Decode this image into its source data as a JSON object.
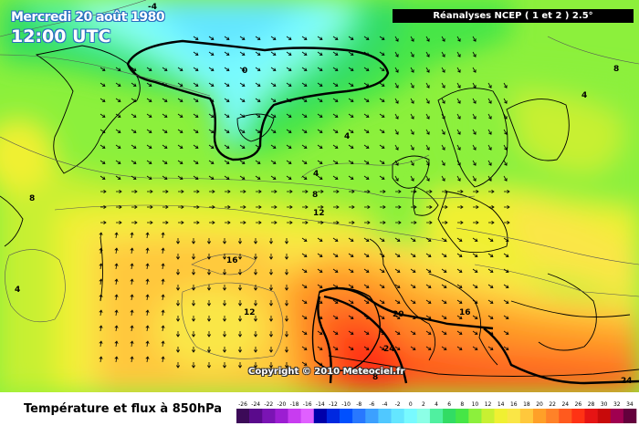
{
  "header": {
    "date": "Mercredi 20 août 1980",
    "time": "12:00 UTC",
    "source": "Réanalyses NCEP ( 1 et 2 ) 2.5°"
  },
  "map": {
    "copyright": "Copyright © 2010 Meteociel.fr",
    "contour_labels": [
      "-4",
      "0",
      "4",
      "4",
      "4",
      "8",
      "8",
      "12",
      "12",
      "16",
      "16",
      "20",
      "24",
      "24",
      "4",
      "8",
      "8"
    ]
  },
  "footer": {
    "field_title": "Température et flux à 850hPa"
  },
  "legend": {
    "ticks": [
      "-26",
      "-24",
      "-22",
      "-20",
      "-18",
      "-16",
      "-14",
      "-12",
      "-10",
      "-8",
      "-6",
      "-4",
      "-2",
      "0",
      "2",
      "4",
      "6",
      "8",
      "10",
      "12",
      "14",
      "16",
      "18",
      "20",
      "22",
      "24",
      "26",
      "28",
      "30",
      "32",
      "34"
    ],
    "colors": [
      "#3c0a58",
      "#5a0a8c",
      "#7a14b4",
      "#9c1ed2",
      "#c83cf0",
      "#e060ff",
      "#0000aa",
      "#0028e0",
      "#0050ff",
      "#2878ff",
      "#3ca0ff",
      "#50c8ff",
      "#64e6ff",
      "#78faff",
      "#8cffe6",
      "#50f0a0",
      "#32dc64",
      "#46e646",
      "#8cf03c",
      "#c8f032",
      "#f0f032",
      "#fae646",
      "#ffc83c",
      "#ffa028",
      "#ff8228",
      "#ff5a1e",
      "#ff3214",
      "#e61414",
      "#c80a0a",
      "#a00050",
      "#64003c"
    ]
  }
}
